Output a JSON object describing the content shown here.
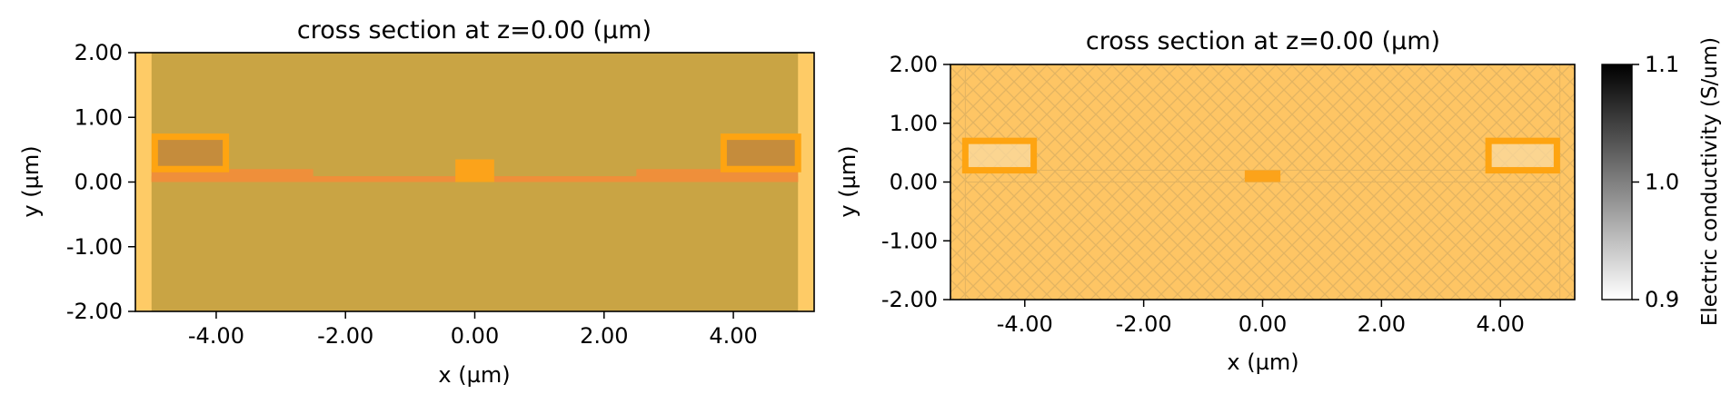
{
  "chart_data": [
    {
      "type": "heatmap",
      "title": "cross section at z=0.00 (µm)",
      "xlabel": "x (µm)",
      "ylabel": "y (µm)",
      "xlim": [
        -5.25,
        5.25
      ],
      "ylim": [
        -2.0,
        2.0
      ],
      "xticks": [
        -4.0,
        -2.0,
        0.0,
        2.0,
        4.0
      ],
      "xtick_labels": [
        "-4.00",
        "-2.00",
        "0.00",
        "2.00",
        "4.00"
      ],
      "yticks": [
        -2.0,
        -1.0,
        0.0,
        1.0,
        2.0
      ],
      "ytick_labels": [
        "-2.00",
        "-1.00",
        "0.00",
        "1.00",
        "2.00"
      ],
      "grid": false,
      "colors": {
        "background": "#fecb66",
        "substrate": "#c9a444",
        "slab": "#ef8f3a",
        "box_edge": "#fea411",
        "box_fill": "#c58c3c",
        "center_block": "#fca31a"
      },
      "structures": [
        {
          "name": "substrate",
          "x": [
            -5.0,
            5.0
          ],
          "y": [
            -2.0,
            2.0
          ]
        },
        {
          "name": "slab",
          "x": [
            -5.0,
            5.0
          ],
          "y": [
            0.0,
            0.09
          ]
        },
        {
          "name": "slab-left-step",
          "x": [
            -5.0,
            -2.5
          ],
          "y": [
            0.0,
            0.2
          ]
        },
        {
          "name": "slab-right-step",
          "x": [
            2.5,
            5.0
          ],
          "y": [
            0.0,
            0.2
          ]
        },
        {
          "name": "left-box",
          "x": [
            -4.95,
            -3.85
          ],
          "y": [
            0.2,
            0.7
          ]
        },
        {
          "name": "right-box",
          "x": [
            3.85,
            5.0
          ],
          "y": [
            0.2,
            0.7
          ]
        },
        {
          "name": "center-block",
          "x": [
            -0.3,
            0.3
          ],
          "y": [
            0.0,
            0.35
          ]
        }
      ]
    },
    {
      "type": "heatmap",
      "title": "cross section at z=0.00 (µm)",
      "xlabel": "x (µm)",
      "ylabel": "y (µm)",
      "xlim": [
        -5.25,
        5.25
      ],
      "ylim": [
        -2.0,
        2.0
      ],
      "xticks": [
        -4.0,
        -2.0,
        0.0,
        2.0,
        4.0
      ],
      "xtick_labels": [
        "-4.00",
        "-2.00",
        "0.00",
        "2.00",
        "4.00"
      ],
      "yticks": [
        -2.0,
        -1.0,
        0.0,
        1.0,
        2.0
      ],
      "ytick_labels": [
        "-2.00",
        "-1.00",
        "0.00",
        "1.00",
        "2.00"
      ],
      "grid": false,
      "colors": {
        "background": "#fec564",
        "hatch": "#e3b461",
        "box_edge": "#fea411",
        "box_fill": "#f9d9a0",
        "center_block": "#fca31a"
      },
      "structures": [
        {
          "name": "left-box",
          "x": [
            -5.0,
            -3.85
          ],
          "y": [
            0.2,
            0.7
          ]
        },
        {
          "name": "right-box",
          "x": [
            3.8,
            4.95
          ],
          "y": [
            0.2,
            0.7
          ]
        },
        {
          "name": "center-block",
          "x": [
            -0.3,
            0.3
          ],
          "y": [
            0.0,
            0.2
          ]
        }
      ],
      "colorbar": {
        "label": "Electric conductivity (S/um)",
        "ticks": [
          0.9,
          1.0,
          1.1
        ],
        "tick_labels": [
          "0.9",
          "1.0",
          "1.1"
        ],
        "range": [
          0.9,
          1.1
        ],
        "cmap": [
          "#ffffff",
          "#000000"
        ]
      }
    }
  ]
}
